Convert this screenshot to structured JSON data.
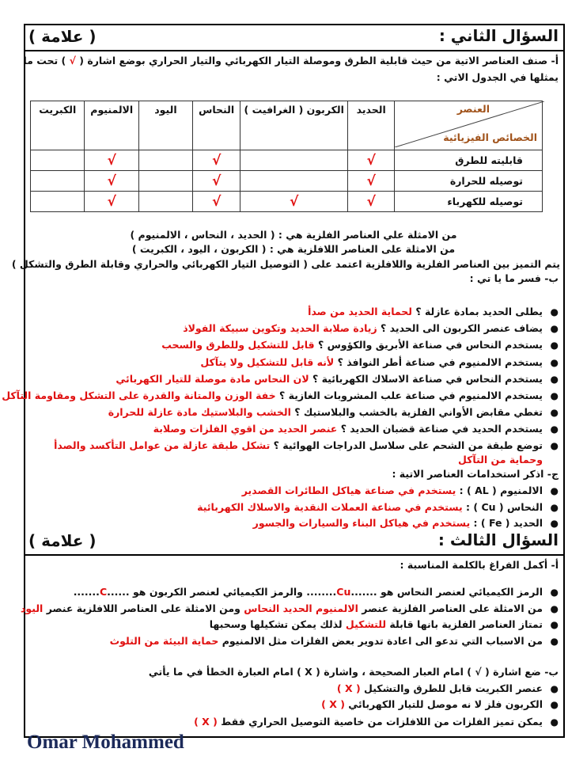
{
  "q2": {
    "title": "السؤال الثاني :",
    "mark": "( علامة )",
    "part_a_line1": "أ- صنف العناصر الاتية من حيث قابلية الطرق وموصلة التيار الكهربائي والتيار الحراري بوضع اشارة (",
    "part_a_check": "√",
    "part_a_line1_end": ") تحت ما",
    "part_a_line2": "يمثلها في الجدول الاتي :",
    "table": {
      "corner_top": "العنصر",
      "corner_bottom": "الخصائص الفيزيائية",
      "columns": [
        "الحديد",
        "الكربون ( الغرافيت )",
        "النحاس",
        "اليود",
        "الالمنيوم",
        "الكبريت"
      ],
      "check_symbol": "√",
      "rows": [
        {
          "label": "قابليته للطرق",
          "checks": [
            true,
            false,
            true,
            false,
            true,
            false
          ]
        },
        {
          "label": "توصيله للحرارة",
          "checks": [
            true,
            false,
            true,
            false,
            true,
            false
          ]
        },
        {
          "label": "توصيله للكهرباء",
          "checks": [
            true,
            true,
            true,
            false,
            true,
            false
          ]
        }
      ]
    },
    "metals_line": "من الامثلة علي العناصر الفلزية هي : ( الحديد ، النحاس ، الالمنيوم )",
    "nonmetals_line": "من الامثلة على العناصر اللافلزية هي : ( الكربون ، اليود ، الكبريت )",
    "distinguish_line": "يتم التميز بين العناصر الفلزية واللافلزية اعتمد على ( التوصيل التيار الكهربائي والحراري وقابلة الطرق والتشكل )",
    "part_b_title": "ب- فسر ما يا تي :",
    "part_b_items": [
      {
        "q": "يطلى الحديد بمادة عازلة ؟ ",
        "a": "لحماية الحديد من صدأ"
      },
      {
        "q": "يضاف عنصر الكربون الى الحديد ؟ ",
        "a": "زيادة صلابة الحديد وتكوين سبيكة الفولاذ"
      },
      {
        "q": "يستخدم النحاس في صناعة الأبريق والكؤوس ؟ ",
        "a": "قابل للتشكيل وللطرق والسحب"
      },
      {
        "q": "يستخدم الالمنيوم في صناعة أطر النوافذ ؟ ",
        "a": "لأنه قابل للتشكيل ولا يتآكل"
      },
      {
        "q": "يستخدم النحاس في صناعة الاسلاك الكهربائية ؟ ",
        "a": "لان النحاس مادة موصلة للتيار الكهربائي"
      },
      {
        "q": "يستخدم الالمنيوم في صناعة علب المشروبات الغازية ؟ ",
        "a": "خفة الوزن والمتانة والقدرة على التشكل ومقاومة التآكل"
      },
      {
        "q": "تغطي مقابض الأواني الفلزية بالخشب والبلاستيك ؟ ",
        "a": "الخشب والبلاستيك مادة عازلة للحرارة"
      },
      {
        "q": "يستخدم الحديد في صناعة قضبان الحديد ؟ ",
        "a": "عنصر الحديد من اقوي الفلزات وصلابة"
      },
      {
        "q": "توضع طبقة من الشحم على سلاسل الدراجات الهوائية ؟ ",
        "a": "تشكل طبقة عازلة من عوامل التأكسد والصدأ وحماية من التآكل"
      }
    ],
    "part_c_title": "ج- اذكر استخدامات العناصر الاتية :",
    "part_c_items": [
      {
        "q": "الالمنيوم ( AL ) : ",
        "a": "يستخدم في صناعة هياكل الطائرات القصدير"
      },
      {
        "q": "النحاس ( Cu ) : ",
        "a": "يستخدم في صناعة العملات النقدية والاسلاك الكهربائية"
      },
      {
        "q": "الحديد ( Fe ) : ",
        "a": "يستخدم في هياكل البناء والسيارات والجسور"
      }
    ]
  },
  "q3": {
    "title": "السؤال الثالث :",
    "mark": "( علامة )",
    "part_a_title": "أ- أكمل الفراغ بالكلمة المناسبة :",
    "part_a_items": [
      [
        "الرمز الكيميائي لعنصر النحاس هو .......",
        "Cu",
        "........ والرمز الكيميائي لعنصر الكربون هو ......",
        "C",
        "......."
      ],
      [
        "من الامثلة على العناصر الفلزية عنصر ",
        "الالمنيوم الحديد النحاس",
        " ومن الامثلة على العناصر اللافلزية عنصر ",
        "اليود",
        ""
      ],
      [
        "تمتاز العناصر الفلزية بانها قابلة ",
        "للتشكيل",
        " لذلك يمكن تشكيلها وسحبها",
        "",
        ""
      ],
      [
        "من الاسباب التي تدعو الى اعادة تدوير بعض الفلزات مثل الالمنيوم ",
        "حماية البيئة من التلوث",
        "",
        "",
        ""
      ]
    ],
    "part_b_title": "ب- ضع اشارة ( √ ) امام العبار الصحيحة ، واشارة ( X ) امام العبارة الخطأ في ما يأتي",
    "part_b_items": [
      {
        "q": "عنصر الكبريت قابل للطرق والتشكيل ",
        "a": "( X )"
      },
      {
        "q": "الكربون فلز لا نه موصل للتيار الكهربائي ",
        "a": "( X )"
      },
      {
        "q": "يمكن تميز الفلزات من اللافلزات من خاصية التوصيل الحراري فقط ",
        "a": "( X )"
      }
    ]
  },
  "signature": "Omar Mohammed",
  "colors": {
    "answer": "#e01010",
    "table_header": "#a0521a",
    "signature": "#1c2a5a"
  }
}
